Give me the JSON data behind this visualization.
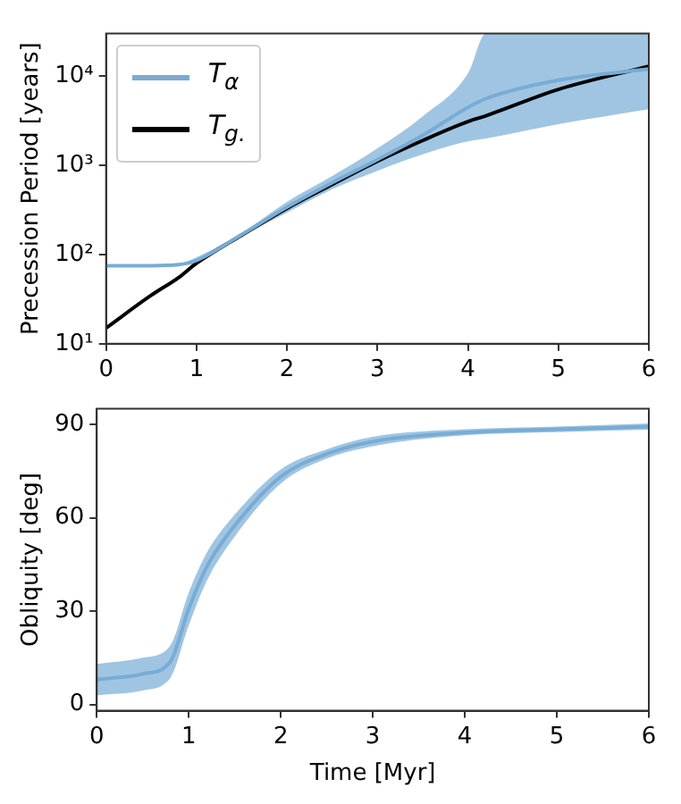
{
  "chart_data": [
    {
      "type": "line",
      "ylabel": "Precession Period [years]",
      "log": "y",
      "xlim": [
        0,
        6
      ],
      "xticks": [
        0,
        1,
        2,
        3,
        4,
        5,
        6
      ],
      "ylim": [
        10,
        30000
      ],
      "yticks": [
        {
          "value": 10,
          "label": "10¹"
        },
        {
          "value": 100,
          "label": "10²"
        },
        {
          "value": 1000,
          "label": "10³"
        },
        {
          "value": 10000,
          "label": "10⁴"
        }
      ],
      "grid": false,
      "legend": "top left",
      "marker": "none",
      "line_style": "solid",
      "x": [
        0,
        0.5,
        0.8,
        1,
        1.5,
        2,
        2.5,
        3,
        3.5,
        4,
        4.2,
        5,
        6
      ],
      "series": [
        {
          "name": "T$_{α}$",
          "color": "#78acd5",
          "values": [
            75,
            75,
            77,
            86,
            168,
            340,
            640,
            1160,
            2170,
            4460,
            5600,
            9000,
            12000
          ],
          "lower": [
            73,
            73,
            75,
            80,
            160,
            295,
            540,
            870,
            1330,
            1860,
            2000,
            2900,
            4270
          ],
          "upper": [
            77,
            77,
            79,
            93,
            175,
            390,
            760,
            1550,
            3550,
            10700,
            30000,
            30000,
            30000
          ]
        },
        {
          "name": "T$_{g.}$",
          "color": "#000000",
          "values": [
            15,
            35,
            55,
            80,
            165,
            330,
            610,
            1110,
            1900,
            3100,
            3600,
            7100,
            12900
          ]
        }
      ]
    },
    {
      "type": "line",
      "xlabel": "Time [Myr]",
      "ylabel": "Obliquity [deg]",
      "xlim": [
        0,
        6
      ],
      "xticks": [
        0,
        1,
        2,
        3,
        4,
        5,
        6
      ],
      "ylim": [
        -2,
        95
      ],
      "yticks": [
        0,
        30,
        60,
        90
      ],
      "grid": false,
      "marker": "none",
      "line_style": "solid",
      "x": [
        0,
        0.5,
        0.8,
        1,
        1.2,
        1.5,
        2,
        2.5,
        3,
        4,
        5,
        6
      ],
      "series": [
        {
          "color": "#78acd5",
          "values": [
            8,
            9.8,
            13.8,
            30.8,
            44.5,
            57.5,
            73.2,
            80.5,
            84.5,
            87.4,
            88.4,
            89.3
          ],
          "lower": [
            3,
            4.5,
            8.6,
            25.5,
            40,
            54,
            71,
            79,
            83,
            86.5,
            87.5,
            88.3
          ],
          "upper": [
            13,
            15,
            19,
            36,
            49,
            61,
            75.5,
            82,
            86,
            88.4,
            89.3,
            90.3
          ]
        }
      ]
    }
  ]
}
